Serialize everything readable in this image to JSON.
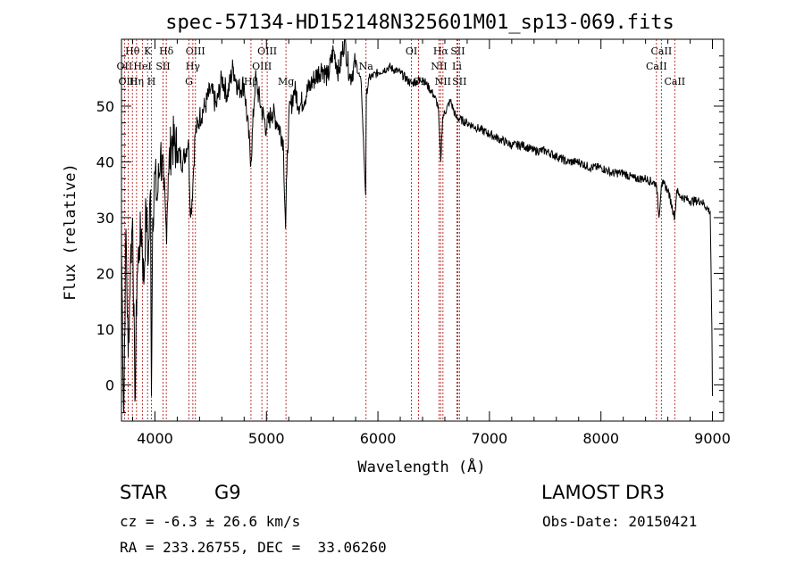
{
  "chart_data": {
    "type": "line",
    "title": "spec-57134-HD152148N325601M01_sp13-069.fits",
    "xlabel": "Wavelength (Å)",
    "ylabel": "Flux (relative)",
    "xlim": [
      3700,
      9100
    ],
    "ylim": [
      -6.5,
      62
    ],
    "x_ticks": [
      4000,
      5000,
      6000,
      7000,
      8000,
      9000
    ],
    "y_ticks": [
      0,
      10,
      20,
      30,
      40,
      50
    ],
    "series": [
      {
        "name": "spectrum",
        "x": [
          3700,
          3720,
          3740,
          3760,
          3780,
          3800,
          3820,
          3840,
          3860,
          3880,
          3900,
          3920,
          3940,
          3960,
          3968,
          3980,
          4000,
          4020,
          4050,
          4080,
          4101,
          4120,
          4150,
          4200,
          4250,
          4300,
          4320,
          4340,
          4360,
          4400,
          4450,
          4500,
          4550,
          4600,
          4650,
          4700,
          4750,
          4800,
          4861,
          4900,
          4950,
          5000,
          5050,
          5100,
          5150,
          5172,
          5183,
          5200,
          5250,
          5300,
          5400,
          5500,
          5550,
          5600,
          5650,
          5700,
          5750,
          5800,
          5850,
          5890,
          5896,
          5920,
          6000,
          6100,
          6200,
          6300,
          6400,
          6500,
          6540,
          6563,
          6580,
          6650,
          6700,
          6800,
          6900,
          7000,
          7100,
          7200,
          7300,
          7400,
          7500,
          7600,
          7700,
          7800,
          7900,
          8000,
          8100,
          8200,
          8300,
          8400,
          8498,
          8520,
          8542,
          8560,
          8600,
          8662,
          8680,
          8700,
          8800,
          8900,
          8980,
          8995,
          9000
        ],
        "y": [
          25,
          -5,
          28,
          5,
          22,
          30,
          -3,
          20,
          25,
          28,
          18,
          32,
          22,
          35,
          -2,
          30,
          38,
          33,
          42,
          35,
          28,
          38,
          44,
          42,
          40,
          44,
          30,
          36,
          45,
          48,
          50,
          53,
          50,
          55,
          52,
          57,
          53,
          54,
          40,
          55,
          50,
          46,
          49,
          47,
          44,
          28,
          38,
          48,
          53,
          50,
          54,
          57,
          55,
          60,
          56,
          62,
          55,
          58,
          54,
          34,
          52,
          55,
          56,
          57,
          56,
          54,
          55,
          52,
          50,
          40,
          48,
          51,
          48,
          47,
          46,
          45,
          44,
          43,
          43,
          42,
          42,
          41,
          40,
          40,
          39,
          39,
          38,
          38,
          37,
          37,
          36,
          30,
          36,
          36,
          35,
          30,
          35,
          34,
          33,
          33,
          31,
          10,
          -2
        ]
      }
    ],
    "lines": [
      {
        "label": "Hθ",
        "wavelength": 3798,
        "row": 1
      },
      {
        "label": "OII",
        "wavelength": 3727,
        "row": 2
      },
      {
        "label": "OIII",
        "wavelength": 3760,
        "row": 3
      },
      {
        "label": "K",
        "wavelength": 3934,
        "row": 1
      },
      {
        "label": "HeI",
        "wavelength": 3889,
        "row": 2
      },
      {
        "label": "Hη",
        "wavelength": 3835,
        "row": 3
      },
      {
        "label": "Hδ",
        "wavelength": 4102,
        "row": 1
      },
      {
        "label": "SII",
        "wavelength": 4072,
        "row": 2
      },
      {
        "label": "H",
        "wavelength": 3969,
        "row": 3
      },
      {
        "label": "OIII",
        "wavelength": 4363,
        "row": 1
      },
      {
        "label": "Hγ",
        "wavelength": 4340,
        "row": 2
      },
      {
        "label": "G",
        "wavelength": 4305,
        "row": 3
      },
      {
        "label": "OIII",
        "wavelength": 5007,
        "row": 1
      },
      {
        "label": "OIII",
        "wavelength": 4959,
        "row": 2
      },
      {
        "label": "Hβ",
        "wavelength": 4861,
        "row": 3
      },
      {
        "label": "Mg",
        "wavelength": 5175,
        "row": 3
      },
      {
        "label": "Na",
        "wavelength": 5893,
        "row": 2
      },
      {
        "label": "OI",
        "wavelength": 6300,
        "row": 1
      },
      {
        "label": "OI",
        "wavelength": 6364,
        "row": 3
      },
      {
        "label": "Hα",
        "wavelength": 6563,
        "row": 1
      },
      {
        "label": "NII",
        "wavelength": 6548,
        "row": 2
      },
      {
        "label": "NII",
        "wavelength": 6583,
        "row": 3
      },
      {
        "label": "SII",
        "wavelength": 6716,
        "row": 1
      },
      {
        "label": "Li",
        "wavelength": 6708,
        "row": 2
      },
      {
        "label": "SII",
        "wavelength": 6731,
        "row": 3
      },
      {
        "label": "CaII",
        "wavelength": 8542,
        "row": 1
      },
      {
        "label": "CaII",
        "wavelength": 8498,
        "row": 2
      },
      {
        "label": "CaII",
        "wavelength": 8662,
        "row": 3
      }
    ]
  },
  "info": {
    "object_class": "STAR",
    "subclass": "G9",
    "survey": "LAMOST DR3",
    "redshift": "cz = -6.3 ± 26.6 km/s",
    "obs_date": "Obs-Date: 20150421",
    "coords": "RA = 233.26755, DEC =  33.06260"
  }
}
